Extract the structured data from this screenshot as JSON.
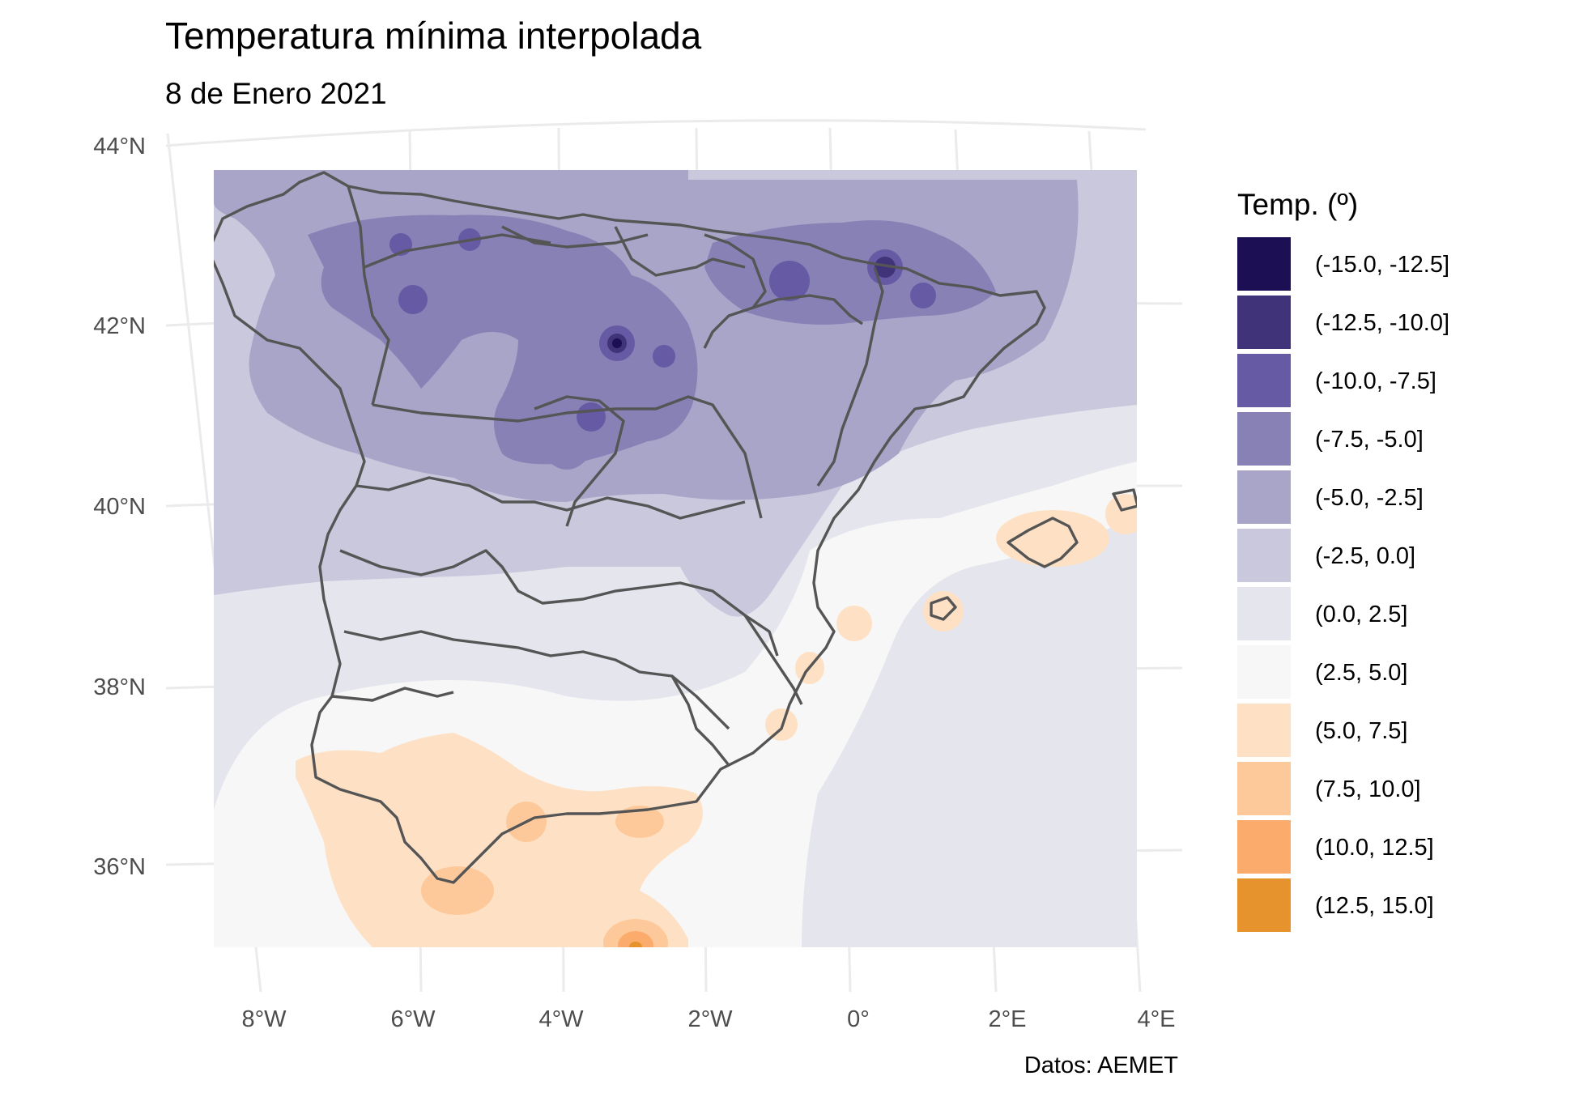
{
  "title": "Temperatura mínima interpolada",
  "subtitle": "8 de Enero 2021",
  "caption": "Datos: AEMET",
  "legend": {
    "title": "Temp. (º)",
    "items": [
      {
        "label": "(-15.0, -12.5]",
        "color": "#1d0f54"
      },
      {
        "label": "(-12.5, -10.0]",
        "color": "#41337a"
      },
      {
        "label": "(-10.0, -7.5]",
        "color": "#655aa3"
      },
      {
        "label": "(-7.5, -5.0]",
        "color": "#8881b6"
      },
      {
        "label": "(-5.0, -2.5]",
        "color": "#a9a5c8"
      },
      {
        "label": "(-2.5, 0.0]",
        "color": "#c9c8dd"
      },
      {
        "label": "(0.0, 2.5]",
        "color": "#e5e5ed"
      },
      {
        "label": "(2.5, 5.0]",
        "color": "#f7f7f7"
      },
      {
        "label": "(5.0, 7.5]",
        "color": "#fee1c5"
      },
      {
        "label": "(7.5, 10.0]",
        "color": "#fdc99a"
      },
      {
        "label": "(10.0, 12.5]",
        "color": "#fbab6b"
      },
      {
        "label": "(12.5, 15.0]",
        "color": "#e6922d"
      }
    ]
  },
  "axes": {
    "x_ticks": [
      "8°W",
      "6°W",
      "4°W",
      "2°W",
      "0°",
      "2°E",
      "4°E"
    ],
    "y_ticks": [
      "44°N",
      "42°N",
      "40°N",
      "38°N",
      "36°N"
    ]
  },
  "map": {
    "region": "Península Ibérica (España) y Baleares",
    "variable": "Temperatura mínima",
    "units": "ºC"
  }
}
